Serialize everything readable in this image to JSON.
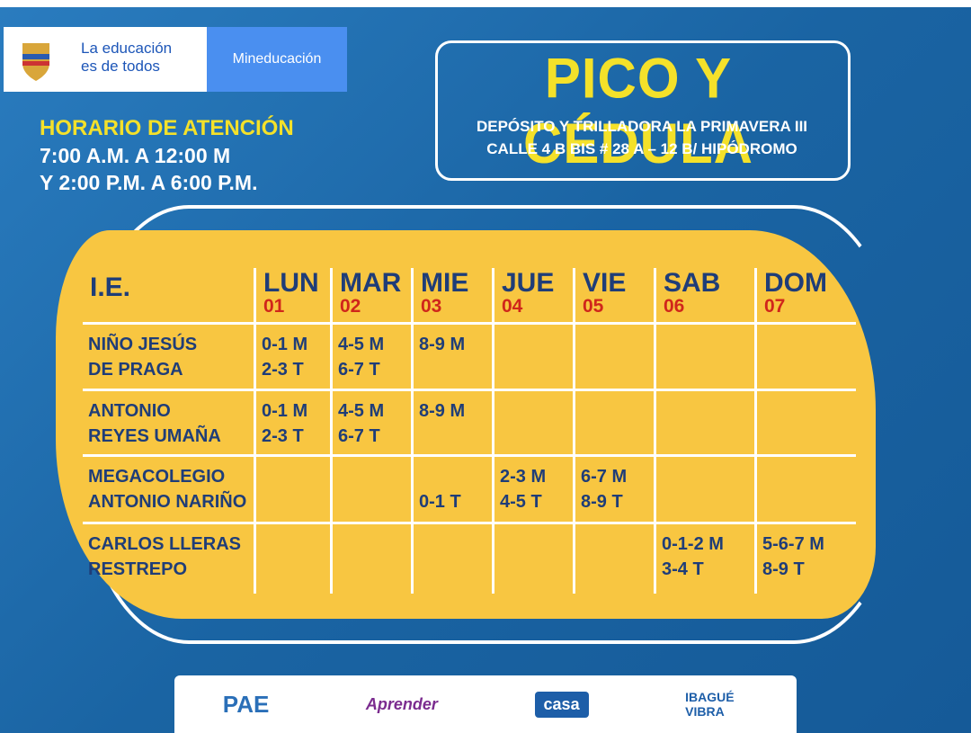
{
  "header": {
    "logo_text": [
      "La educación",
      "es de todos"
    ],
    "ministry": "Mineducación"
  },
  "hours": {
    "title": "HORARIO DE ATENCIÓN",
    "lines": [
      "7:00 A.M. A 12:00 M",
      "Y 2:00 P.M. A 6:00 P.M."
    ]
  },
  "title": "PICO Y CÉDULA",
  "subtitle": [
    "DEPÓSITO Y TRILLADORA LA PRIMAVERA III",
    "CALLE 4 B BIS # 28 A – 12 B/ HIPÓDROMO"
  ],
  "table": {
    "corner": "I.E.",
    "days": [
      {
        "name": "LUN",
        "number": "01"
      },
      {
        "name": "MAR",
        "number": "02"
      },
      {
        "name": "MIE",
        "number": "03"
      },
      {
        "name": "JUE",
        "number": "04"
      },
      {
        "name": "VIE",
        "number": "05"
      },
      {
        "name": "SAB",
        "number": "06"
      },
      {
        "name": "DOM",
        "number": "07"
      }
    ],
    "rows": [
      {
        "name": [
          "NIÑO JESÚS",
          "DE PRAGA"
        ],
        "cells": [
          [
            "0-1 M",
            "2-3 T"
          ],
          [
            "4-5 M",
            "6-7 T"
          ],
          [
            "8-9 M"
          ],
          null,
          null,
          null,
          null
        ]
      },
      {
        "name": [
          "ANTONIO",
          "REYES UMAÑA"
        ],
        "cells": [
          [
            "0-1 M",
            "2-3 T"
          ],
          [
            "4-5 M",
            "6-7 T"
          ],
          [
            "8-9 M"
          ],
          null,
          null,
          null,
          null
        ]
      },
      {
        "name": [
          "MEGACOLEGIO",
          "ANTONIO NARIÑO"
        ],
        "cells": [
          null,
          null,
          [
            "0-1 T"
          ],
          [
            "2-3 M",
            "4-5 T"
          ],
          [
            "6-7  M",
            "8-9 T"
          ],
          null,
          null
        ]
      },
      {
        "name": [
          "CARLOS LLERAS",
          "RESTREPO"
        ],
        "cells": [
          null,
          null,
          null,
          null,
          null,
          [
            "0-1-2 M",
            "3-4 T"
          ],
          [
            "5-6-7 M",
            "8-9 T"
          ]
        ]
      }
    ]
  },
  "footer": {
    "logos": [
      "PAE",
      "Aprender",
      "casa",
      "IBAGUÉ VIBRA"
    ]
  }
}
